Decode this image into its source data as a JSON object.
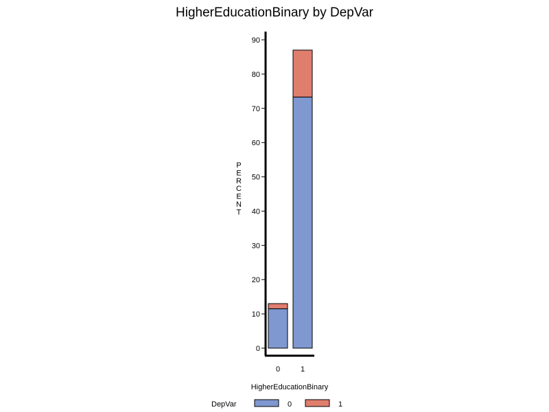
{
  "chart_data": {
    "type": "bar",
    "stacked": true,
    "title": "HigherEducationBinary  by  DepVar",
    "xlabel": "HigherEducationBinary",
    "ylabel": "PERCENT",
    "categories": [
      "0",
      "1"
    ],
    "series": [
      {
        "name": "0",
        "values": [
          11.5,
          73.3
        ],
        "color": "#7f98d0"
      },
      {
        "name": "1",
        "values": [
          1.5,
          13.7
        ],
        "color": "#e07e6e"
      }
    ],
    "ylim": [
      0,
      90
    ],
    "yticks": [
      0,
      10,
      20,
      30,
      40,
      50,
      60,
      70,
      80,
      90
    ],
    "grid": false,
    "legend": {
      "title": "DepVar",
      "position": "bottom"
    }
  }
}
